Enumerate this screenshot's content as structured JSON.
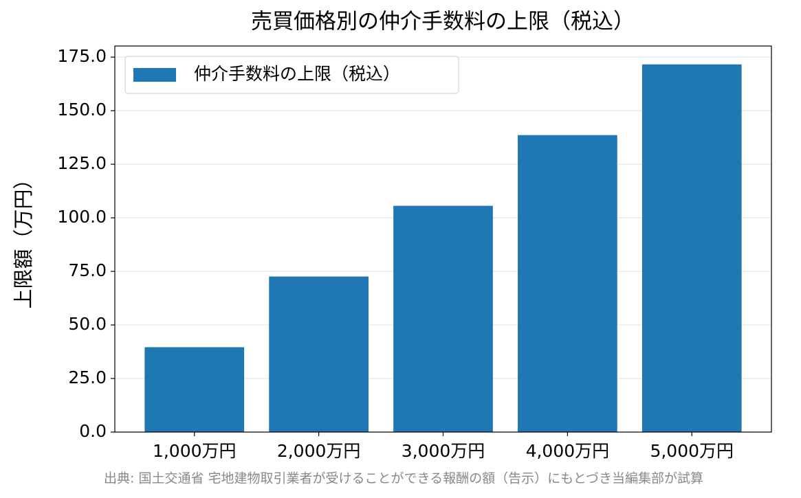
{
  "chart_data": {
    "type": "bar",
    "title": "売買価格別の仲介手数料の上限（税込）",
    "y_label": "上限額（万円）",
    "source": "出典: 国土交通省 宅地建物取引業者が受けることができる報酬の額（告示）にもとづき当編集部が試算",
    "categories": [
      "1,000万円",
      "2,000万円",
      "3,000万円",
      "4,000万円",
      "5,000万円"
    ],
    "series": [
      {
        "name": "仲介手数料の上限（税込）",
        "color": "#1f77b4",
        "values": [
          39.6,
          72.6,
          105.6,
          138.6,
          171.6
        ]
      }
    ],
    "ylim": [
      0,
      180.18
    ],
    "yticks": [
      {
        "value": 0,
        "label": "0.0"
      },
      {
        "value": 25,
        "label": "25.0"
      },
      {
        "value": 50,
        "label": "50.0"
      },
      {
        "value": 75,
        "label": "75.0"
      },
      {
        "value": 100,
        "label": "100.0"
      },
      {
        "value": 125,
        "label": "125.0"
      },
      {
        "value": 150,
        "label": "150.0"
      },
      {
        "value": 175,
        "label": "175.0"
      }
    ],
    "grid": true,
    "legend": "upper left"
  }
}
